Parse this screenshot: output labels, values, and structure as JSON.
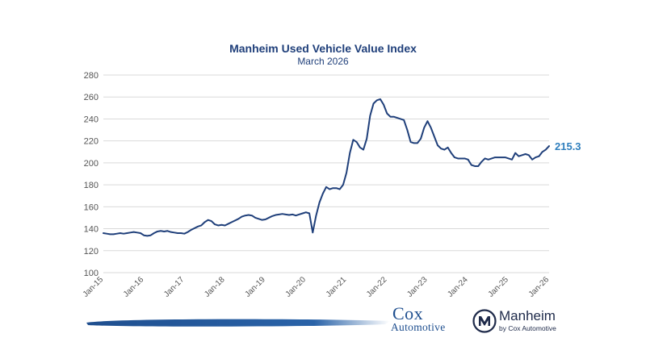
{
  "chart_data": {
    "type": "line",
    "title": "Manheim Used Vehicle Value Index",
    "subtitle": "March 2026",
    "xlabel": "",
    "ylabel": "",
    "ylim": [
      100,
      280
    ],
    "yticks": [
      100,
      120,
      140,
      160,
      180,
      200,
      220,
      240,
      260,
      280
    ],
    "xticks": [
      "Jan-15",
      "Jan-16",
      "Jan-17",
      "Jan-18",
      "Jan-19",
      "Jan-20",
      "Jan-21",
      "Jan-22",
      "Jan-23",
      "Jan-24",
      "Jan-25",
      "Jan-26"
    ],
    "x_start": "Jan-15",
    "x_end": "Mar-26",
    "grid": "horizontal",
    "line_color": "#1f3f7a",
    "end_label": "215.3",
    "end_label_color": "#2e7ebd",
    "series": [
      {
        "name": "",
        "values": [
          136,
          135.5,
          135,
          135,
          135.5,
          136,
          135.5,
          136,
          136.5,
          137,
          136.5,
          136,
          134,
          133.5,
          134,
          136,
          137.5,
          138,
          137.5,
          138,
          137,
          136.5,
          136,
          136,
          135.5,
          137,
          139,
          140.5,
          142,
          143,
          146,
          148,
          147,
          144,
          143,
          143.5,
          143,
          144.5,
          146,
          147.5,
          149,
          151,
          152,
          152.5,
          152,
          150,
          149,
          148,
          148.5,
          150,
          151.5,
          152.5,
          153,
          153.5,
          153,
          152.5,
          153,
          152,
          153,
          154,
          155,
          154,
          136.5,
          152,
          164,
          172,
          178,
          176,
          177,
          177,
          176,
          180,
          191,
          209,
          221,
          219,
          214,
          212,
          222,
          243,
          254,
          257,
          258,
          253,
          245,
          242,
          242,
          241,
          240,
          239,
          230,
          219,
          218,
          218,
          222,
          232,
          238,
          232,
          224,
          216,
          213,
          212,
          214,
          209,
          205,
          204,
          204,
          204,
          203,
          198,
          197,
          197,
          201,
          204,
          203,
          204,
          205,
          205,
          205,
          205,
          204,
          203,
          209,
          206,
          207,
          208,
          207,
          203,
          205,
          206,
          210,
          212,
          215.3
        ]
      }
    ]
  },
  "branding": {
    "cox_name": "Cox",
    "cox_sub": "Automotive",
    "manheim_name": "Manheim",
    "manheim_sub": "by Cox Automotive"
  }
}
